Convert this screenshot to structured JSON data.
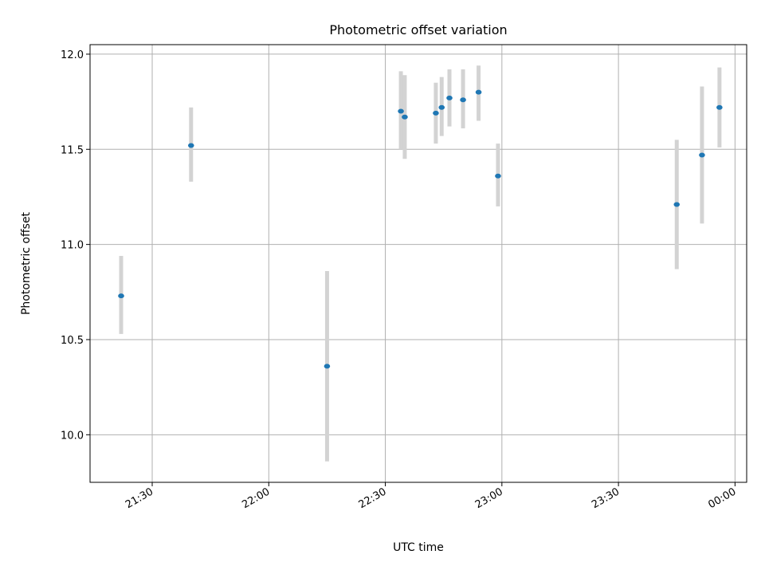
{
  "chart_data": {
    "type": "scatter",
    "title": "Photometric offset variation",
    "xlabel": "UTC time",
    "ylabel": "Photometric offset",
    "xlim": [
      "21:14",
      "00:03"
    ],
    "ylim": [
      9.75,
      12.05
    ],
    "xticks": [
      "21:30",
      "22:00",
      "22:30",
      "23:00",
      "23:30",
      "00:00"
    ],
    "yticks": [
      "10.0",
      "10.5",
      "11.0",
      "11.5",
      "12.0"
    ],
    "grid": true,
    "marker_color": "#1f77b4",
    "errorbar_color": "#d3d3d3",
    "points": [
      {
        "x": "21:22",
        "y": 10.73,
        "low": 10.53,
        "high": 10.94
      },
      {
        "x": "21:40",
        "y": 11.52,
        "low": 11.33,
        "high": 11.72
      },
      {
        "x": "22:15",
        "y": 10.36,
        "low": 9.86,
        "high": 10.86
      },
      {
        "x": "22:34",
        "y": 11.7,
        "low": 11.5,
        "high": 11.91
      },
      {
        "x": "22:35",
        "y": 11.67,
        "low": 11.45,
        "high": 11.89
      },
      {
        "x": "22:43",
        "y": 11.69,
        "low": 11.53,
        "high": 11.85
      },
      {
        "x": "22:44.5",
        "y": 11.72,
        "low": 11.57,
        "high": 11.88
      },
      {
        "x": "22:46.5",
        "y": 11.77,
        "low": 11.62,
        "high": 11.92
      },
      {
        "x": "22:50",
        "y": 11.76,
        "low": 11.61,
        "high": 11.92
      },
      {
        "x": "22:54",
        "y": 11.8,
        "low": 11.65,
        "high": 11.94
      },
      {
        "x": "22:59",
        "y": 11.36,
        "low": 11.2,
        "high": 11.53
      },
      {
        "x": "23:45",
        "y": 11.21,
        "low": 10.87,
        "high": 11.55
      },
      {
        "x": "23:51.5",
        "y": 11.47,
        "low": 11.11,
        "high": 11.83
      },
      {
        "x": "23:56",
        "y": 11.72,
        "low": 11.51,
        "high": 11.93
      }
    ]
  }
}
